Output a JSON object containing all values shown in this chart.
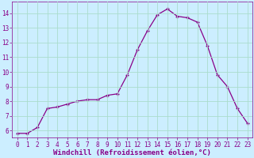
{
  "x": [
    0,
    1,
    2,
    3,
    4,
    5,
    6,
    7,
    8,
    9,
    10,
    11,
    12,
    13,
    14,
    15,
    16,
    17,
    18,
    19,
    20,
    21,
    22,
    23
  ],
  "y": [
    5.8,
    5.8,
    6.2,
    7.5,
    7.6,
    7.8,
    8.0,
    8.1,
    8.1,
    8.4,
    8.5,
    9.8,
    11.5,
    12.8,
    13.9,
    14.3,
    13.8,
    13.7,
    13.4,
    11.8,
    9.8,
    9.0,
    7.5,
    6.5
  ],
  "line_color": "#880088",
  "marker": "+",
  "markersize": 3.5,
  "markeredgewidth": 1.0,
  "linewidth": 0.9,
  "xlabel": "Windchill (Refroidissement éolien,°C)",
  "xtick_labels": [
    "0",
    "1",
    "2",
    "3",
    "4",
    "5",
    "6",
    "7",
    "8",
    "9",
    "10",
    "11",
    "12",
    "13",
    "14",
    "15",
    "16",
    "17",
    "18",
    "19",
    "20",
    "21",
    "22",
    "23"
  ],
  "ylim": [
    5.5,
    14.8
  ],
  "xlim": [
    -0.5,
    23.5
  ],
  "yticks": [
    6,
    7,
    8,
    9,
    10,
    11,
    12,
    13,
    14
  ],
  "bg_color": "#cceeff",
  "grid_color": "#aaddcc",
  "tick_fontsize": 5.5,
  "xlabel_fontsize": 6.5,
  "label_color": "#880088"
}
